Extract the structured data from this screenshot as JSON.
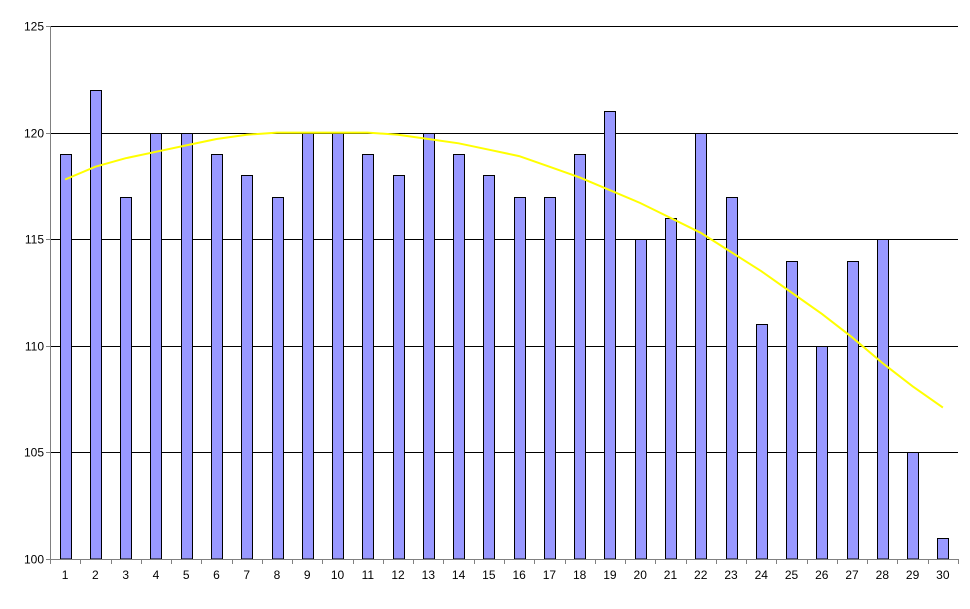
{
  "chart_data": {
    "type": "bar",
    "title": "",
    "xlabel": "",
    "ylabel": "",
    "categories": [
      "1",
      "2",
      "3",
      "4",
      "5",
      "6",
      "7",
      "8",
      "9",
      "10",
      "11",
      "12",
      "13",
      "14",
      "15",
      "16",
      "17",
      "18",
      "19",
      "20",
      "21",
      "22",
      "23",
      "24",
      "25",
      "26",
      "27",
      "28",
      "29",
      "30"
    ],
    "series": [
      {
        "type": "bar",
        "values": [
          119,
          122,
          117,
          120,
          120,
          119,
          118,
          117,
          120,
          120,
          119,
          118,
          120,
          119,
          118,
          117,
          117,
          119,
          121,
          115,
          116,
          120,
          117,
          111,
          114,
          110,
          114,
          115,
          105,
          101
        ]
      },
      {
        "type": "trendline",
        "values": [
          117.8,
          118.4,
          118.8,
          119.1,
          119.4,
          119.7,
          119.9,
          120.0,
          120.0,
          120.0,
          120.0,
          119.9,
          119.7,
          119.5,
          119.2,
          118.9,
          118.4,
          117.9,
          117.3,
          116.7,
          116.0,
          115.3,
          114.4,
          113.5,
          112.5,
          111.5,
          110.4,
          109.2,
          108.1,
          107.1
        ]
      }
    ],
    "ylim": [
      100,
      125
    ],
    "yticks": [
      100,
      105,
      110,
      115,
      120,
      125
    ],
    "grid": true,
    "legend": "none",
    "colors": {
      "bar_fill": "#9999ff",
      "bar_stroke": "#000000",
      "trendline": "#ffff00",
      "gridline": "#000000",
      "axis": "#808080"
    }
  }
}
